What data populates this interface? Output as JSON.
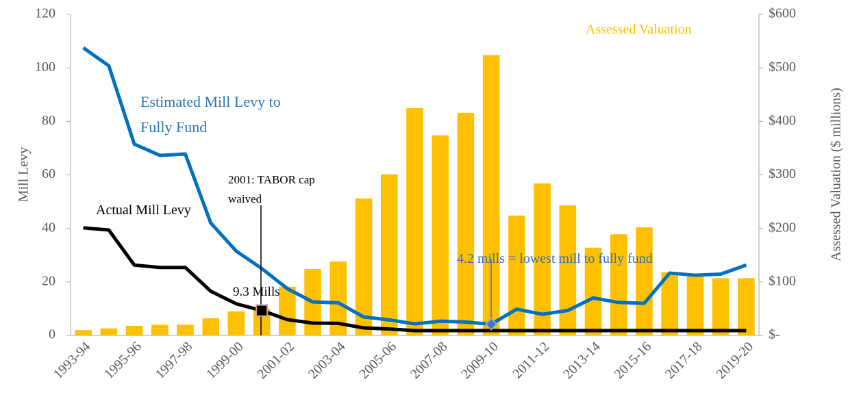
{
  "chart_data": {
    "type": "bar-line",
    "categories": [
      "1993-94",
      null,
      "1995-96",
      null,
      "1997-98",
      null,
      "1999-00",
      null,
      "2001-02",
      null,
      "2003-04",
      null,
      "2005-06",
      null,
      "2007-08",
      null,
      "2009-10",
      null,
      "2011-12",
      null,
      "2013-14",
      null,
      "2015-16",
      null,
      "2017-18",
      null,
      "2019-20"
    ],
    "series": [
      {
        "name": "Assessed Valuation",
        "type": "bar",
        "axis": "y2",
        "color": "#FFC000",
        "values": [
          10,
          13,
          18,
          20,
          20,
          32,
          45,
          50,
          91,
          124,
          138,
          256,
          301,
          425,
          374,
          416,
          524,
          224,
          284,
          243,
          164,
          189,
          202,
          118,
          110,
          107,
          107
        ]
      },
      {
        "name": "Estimated Mill Levy to Fully Fund",
        "type": "line",
        "axis": "y",
        "color": "#0070C0",
        "values": [
          107.5,
          100.8,
          71.5,
          67.3,
          67.8,
          42,
          31.5,
          25,
          17.5,
          12.5,
          12.2,
          6.9,
          5.8,
          4.3,
          5.3,
          5,
          4.2,
          9.8,
          7.9,
          9.3,
          14,
          12.3,
          12,
          23.3,
          22.5,
          22.9,
          26.3
        ]
      },
      {
        "name": "Actual Mill Levy",
        "type": "line",
        "axis": "y",
        "color": "#000000",
        "values": [
          40.2,
          39.4,
          26.3,
          25.4,
          25.4,
          16.5,
          11.8,
          9.3,
          5.9,
          4.6,
          4.5,
          2.8,
          2.4,
          1.8,
          1.8,
          1.8,
          1.8,
          1.8,
          1.8,
          1.8,
          1.8,
          1.8,
          1.8,
          1.8,
          1.8,
          1.8,
          1.8
        ]
      }
    ],
    "y_label": "Mill Levy",
    "y2_label": "Assessed Valuation ($ millions)",
    "ylim": [
      0,
      120
    ],
    "yticks": [
      0,
      20,
      40,
      60,
      80,
      100,
      120
    ],
    "y2lim": [
      0,
      600
    ],
    "y2ticks": [
      {
        "value": 0,
        "label": "$-"
      },
      {
        "value": 100,
        "label": "$100"
      },
      {
        "value": 200,
        "label": "$200"
      },
      {
        "value": 300,
        "label": "$300"
      },
      {
        "value": 400,
        "label": "$400"
      },
      {
        "value": 500,
        "label": "$500"
      },
      {
        "value": 600,
        "label": "$600"
      }
    ],
    "annotations": [
      "2001: TABOR cap waived",
      "9.3 Mills",
      "4.2 mills = lowest mill to fully fund"
    ]
  }
}
